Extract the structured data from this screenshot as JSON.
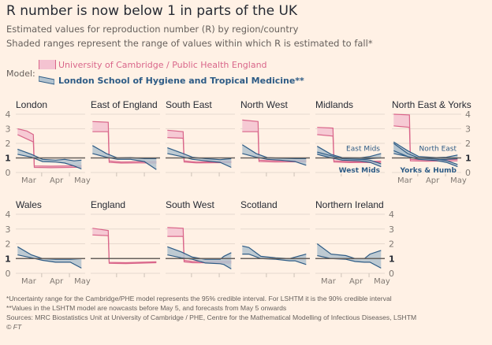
{
  "title": "R number is now below 1 in parts of the UK",
  "subtitle1": "Estimated values for reproduction number (R) by region/country",
  "subtitle2": "Shaded ranges represent the range of values within which R is estimated to fall*",
  "legend": {
    "label": "Model:",
    "items": [
      {
        "name": "University of Cambridge / Public Health England",
        "color": "#d9668a",
        "fill": "#f4c3d1"
      },
      {
        "name": "London School of Hygiene and Tropical Medicine**",
        "color": "#2d5b85",
        "fill": "#b3c3cf"
      }
    ]
  },
  "footnotes": [
    "*Uncertainty range for the Cambridge/PHE model represents the 95% credible interval. For LSHTM it is the 90% credible interval",
    "**Values in the LSHTM model are nowcasts before May 5, and forecasts from May 5 onwards",
    "Sources: MRC Biostatistics Unit at University of Cambridge / PHE, Centre for the Mathematical Modelling of Infectious Diseases, LSHTM",
    "© FT"
  ],
  "chart_data": {
    "type": "area",
    "layout": "small-multiples",
    "ylim": [
      0,
      4
    ],
    "yticks": [
      "0",
      "1",
      "2",
      "3",
      "4"
    ],
    "reference_line": 1,
    "xticks": [
      "Mar",
      "Apr",
      "May"
    ],
    "grid": true,
    "panels": [
      {
        "title": "London",
        "cambridge": [
          [
            "Mar 5",
            2.6,
            3.0
          ],
          [
            "Mar 15",
            2.3,
            2.85
          ],
          [
            "Mar 22",
            2.1,
            2.6
          ],
          [
            "Mar 23",
            0.35,
            0.45
          ],
          [
            "Apr 10",
            0.33,
            0.43
          ],
          [
            "May 13",
            0.36,
            0.46
          ]
        ],
        "lshtm": [
          {
            "label": "",
            "points": [
              [
                "Mar 5",
                1.25,
                1.6
              ],
              [
                "Mar 20",
                1.05,
                1.25
              ],
              [
                "Apr 1",
                0.75,
                0.9
              ],
              [
                "Apr 15",
                0.72,
                0.85
              ],
              [
                "Apr 25",
                0.65,
                0.9
              ],
              [
                "May 5",
                0.45,
                0.8
              ],
              [
                "May 13",
                0.25,
                0.85
              ]
            ]
          }
        ]
      },
      {
        "title": "East of England",
        "cambridge": [
          [
            "Mar 5",
            2.8,
            3.5
          ],
          [
            "Mar 22",
            2.8,
            3.45
          ],
          [
            "Mar 23",
            0.7,
            0.8
          ],
          [
            "Apr 5",
            0.65,
            0.72
          ],
          [
            "Apr 25",
            0.66,
            0.74
          ],
          [
            "May 13",
            0.65,
            0.75
          ]
        ],
        "lshtm": [
          {
            "label": "",
            "points": [
              [
                "Mar 5",
                1.3,
                1.85
              ],
              [
                "Mar 20",
                1.05,
                1.3
              ],
              [
                "Apr 1",
                0.9,
                1.0
              ],
              [
                "Apr 15",
                0.9,
                1.02
              ],
              [
                "Apr 30",
                0.75,
                0.95
              ],
              [
                "May 13",
                0.2,
                0.95
              ]
            ]
          }
        ]
      },
      {
        "title": "South East",
        "cambridge": [
          [
            "Mar 5",
            2.4,
            2.9
          ],
          [
            "Mar 22",
            2.35,
            2.8
          ],
          [
            "Mar 23",
            0.72,
            0.8
          ],
          [
            "Apr 5",
            0.66,
            0.72
          ],
          [
            "May 13",
            0.68,
            0.76
          ]
        ],
        "lshtm": [
          {
            "label": "",
            "points": [
              [
                "Mar 5",
                1.3,
                1.7
              ],
              [
                "Mar 20",
                1.1,
                1.35
              ],
              [
                "Apr 1",
                0.9,
                1.05
              ],
              [
                "Apr 15",
                0.8,
                0.95
              ],
              [
                "May 1",
                0.7,
                0.88
              ],
              [
                "May 13",
                0.35,
                0.95
              ]
            ]
          }
        ]
      },
      {
        "title": "North West",
        "cambridge": [
          [
            "Mar 5",
            2.8,
            3.6
          ],
          [
            "Mar 22",
            2.8,
            3.5
          ],
          [
            "Mar 23",
            0.75,
            0.85
          ],
          [
            "Apr 10",
            0.72,
            0.8
          ],
          [
            "May 13",
            0.74,
            0.82
          ]
        ],
        "lshtm": [
          {
            "label": "",
            "points": [
              [
                "Mar 5",
                1.3,
                1.9
              ],
              [
                "Mar 20",
                1.05,
                1.3
              ],
              [
                "Apr 1",
                0.9,
                1.02
              ],
              [
                "Apr 15",
                0.85,
                0.98
              ],
              [
                "May 1",
                0.75,
                0.95
              ],
              [
                "May 13",
                0.5,
                0.95
              ]
            ]
          }
        ]
      },
      {
        "title": "Midlands",
        "cambridge": [
          [
            "Mar 5",
            2.6,
            3.1
          ],
          [
            "Mar 22",
            2.5,
            3.05
          ],
          [
            "Mar 23",
            0.72,
            0.8
          ],
          [
            "Apr 10",
            0.68,
            0.75
          ],
          [
            "May 13",
            0.7,
            0.78
          ]
        ],
        "lshtm": [
          {
            "label": "East Mids",
            "points": [
              [
                "Mar 5",
                1.3,
                1.8
              ],
              [
                "Mar 20",
                1.05,
                1.25
              ],
              [
                "Apr 1",
                0.92,
                1.02
              ],
              [
                "Apr 20",
                0.9,
                1.0
              ],
              [
                "May 1",
                0.95,
                1.1
              ],
              [
                "May 13",
                1.0,
                1.3
              ]
            ]
          },
          {
            "label": "West Mids",
            "points": [
              [
                "Mar 5",
                1.25,
                1.4
              ],
              [
                "Mar 20",
                1.0,
                1.15
              ],
              [
                "Apr 1",
                0.85,
                0.95
              ],
              [
                "Apr 20",
                0.8,
                0.9
              ],
              [
                "May 1",
                0.7,
                0.85
              ],
              [
                "May 13",
                0.4,
                0.6
              ]
            ]
          }
        ]
      },
      {
        "title": "North East & Yorks",
        "cambridge": [
          [
            "Mar 5",
            3.2,
            4.0
          ],
          [
            "Mar 22",
            3.1,
            3.95
          ],
          [
            "Mar 23",
            0.8,
            0.9
          ],
          [
            "Apr 10",
            0.78,
            0.86
          ],
          [
            "May 13",
            0.8,
            0.9
          ]
        ],
        "lshtm": [
          {
            "label": "North East",
            "points": [
              [
                "Mar 5",
                1.3,
                2.1
              ],
              [
                "Mar 20",
                1.1,
                1.5
              ],
              [
                "Apr 1",
                0.95,
                1.1
              ],
              [
                "Apr 20",
                0.9,
                1.02
              ],
              [
                "May 1",
                0.9,
                1.05
              ],
              [
                "May 13",
                0.95,
                1.2
              ]
            ]
          },
          {
            "label": "Yorks & Humb",
            "points": [
              [
                "Mar 5",
                1.5,
                2.0
              ],
              [
                "Mar 20",
                1.1,
                1.3
              ],
              [
                "Apr 1",
                0.9,
                1.0
              ],
              [
                "Apr 20",
                0.82,
                0.92
              ],
              [
                "May 1",
                0.7,
                0.82
              ],
              [
                "May 13",
                0.4,
                0.55
              ]
            ]
          }
        ]
      },
      {
        "title": "Wales",
        "cambridge": [],
        "lshtm": [
          {
            "label": "",
            "points": [
              [
                "Mar 5",
                1.25,
                1.8
              ],
              [
                "Mar 20",
                1.05,
                1.25
              ],
              [
                "Apr 1",
                0.88,
                1.0
              ],
              [
                "Apr 15",
                0.75,
                0.95
              ],
              [
                "May 1",
                0.75,
                0.95
              ],
              [
                "May 13",
                0.35,
                1.0
              ]
            ]
          }
        ]
      },
      {
        "title": "England",
        "cambridge": [
          [
            "Mar 5",
            2.6,
            3.05
          ],
          [
            "Mar 22",
            2.55,
            2.9
          ],
          [
            "Mar 23",
            0.68,
            0.74
          ],
          [
            "Apr 10",
            0.66,
            0.72
          ],
          [
            "May 13",
            0.72,
            0.78
          ]
        ],
        "lshtm": []
      },
      {
        "title": "South West",
        "cambridge": [
          [
            "Mar 5",
            2.5,
            3.1
          ],
          [
            "Mar 22",
            2.5,
            3.05
          ],
          [
            "Mar 23",
            0.78,
            0.88
          ],
          [
            "Apr 1",
            0.72,
            0.8
          ],
          [
            "May 13",
            0.7,
            0.82
          ]
        ],
        "lshtm": [
          {
            "label": "",
            "points": [
              [
                "Mar 5",
                1.25,
                1.8
              ],
              [
                "Mar 20",
                1.05,
                1.45
              ],
              [
                "Apr 1",
                0.95,
                1.1
              ],
              [
                "Apr 15",
                0.7,
                0.95
              ],
              [
                "May 1",
                0.65,
                0.95
              ],
              [
                "May 5",
                0.6,
                1.15
              ],
              [
                "May 13",
                0.3,
                1.4
              ]
            ]
          }
        ]
      },
      {
        "title": "Scotland",
        "cambridge": [],
        "lshtm": [
          {
            "label": "",
            "points": [
              [
                "Mar 5",
                1.3,
                1.85
              ],
              [
                "Mar 12",
                1.3,
                1.75
              ],
              [
                "Mar 25",
                1.0,
                1.15
              ],
              [
                "Apr 10",
                0.95,
                1.05
              ],
              [
                "Apr 25",
                0.85,
                1.0
              ],
              [
                "May 1",
                0.85,
                1.1
              ],
              [
                "May 13",
                0.6,
                1.3
              ]
            ]
          }
        ]
      },
      {
        "title": "Northern Ireland",
        "cambridge": [],
        "lshtm": [
          {
            "label": "",
            "points": [
              [
                "Mar 5",
                1.2,
                2.0
              ],
              [
                "Mar 20",
                1.0,
                1.3
              ],
              [
                "Apr 5",
                0.95,
                1.2
              ],
              [
                "Apr 15",
                0.8,
                1.0
              ],
              [
                "Apr 25",
                0.75,
                1.0
              ],
              [
                "May 1",
                0.75,
                1.3
              ],
              [
                "May 13",
                0.35,
                1.55
              ]
            ]
          }
        ]
      }
    ]
  }
}
